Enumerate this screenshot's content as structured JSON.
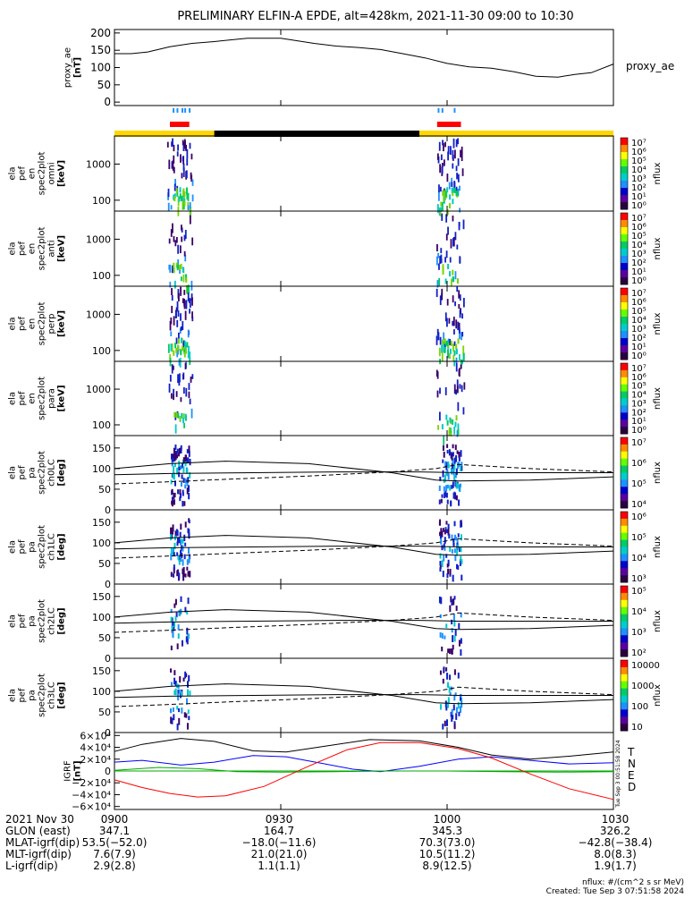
{
  "title": "PRELIMINARY ELFIN-A EPDE, alt=428km, 2021-11-30 09:00 to 10:30",
  "x_ticks": [
    "0900",
    "0930",
    "1000",
    "1030"
  ],
  "colors": {
    "ae_line": "#000000",
    "sci_zone_bar": "#ff0000",
    "sci_zone_tick": "#1e90ff",
    "orbit_day": "#ffd700",
    "orbit_night": "#000000",
    "grf_T": "#000000",
    "grf_N": "#0000ff",
    "grf_E": "#00aa00",
    "grf_D": "#ff0000"
  },
  "panels": {
    "proxy_ae": {
      "ylabel": [
        "proxy_ae",
        "[nT]"
      ],
      "side_label": "proxy_ae",
      "yticks": [
        "200",
        "150",
        "100",
        "50",
        "0"
      ]
    },
    "spec_omni": {
      "ylabel": [
        "ela",
        "pef",
        "en",
        "spec2plot",
        "omni",
        "[keV]"
      ],
      "yticks": [
        "1000",
        "100"
      ],
      "cb_ticks": [
        "10⁷",
        "10⁶",
        "10⁵",
        "10⁴",
        "10³",
        "10²",
        "10¹",
        "10⁰"
      ],
      "cb_label": "nflux"
    },
    "spec_anti": {
      "ylabel": [
        "ela",
        "pef",
        "en",
        "spec2plot",
        "anti",
        "[keV]"
      ],
      "yticks": [
        "1000",
        "100"
      ],
      "cb_ticks": [
        "10⁷",
        "10⁶",
        "10⁵",
        "10⁴",
        "10³",
        "10²",
        "10¹",
        "10⁰"
      ],
      "cb_label": "nflux"
    },
    "spec_perp": {
      "ylabel": [
        "ela",
        "pef",
        "en",
        "spec2plot",
        "perp",
        "[keV]"
      ],
      "yticks": [
        "1000",
        "100"
      ],
      "cb_ticks": [
        "10⁷",
        "10⁶",
        "10⁵",
        "10⁴",
        "10³",
        "10²",
        "10¹",
        "10⁰"
      ],
      "cb_label": "nflux"
    },
    "spec_para": {
      "ylabel": [
        "ela",
        "pef",
        "en",
        "spec2plot",
        "para",
        "[keV]"
      ],
      "yticks": [
        "1000",
        "100"
      ],
      "cb_ticks": [
        "10⁷",
        "10⁶",
        "10⁵",
        "10⁴",
        "10³",
        "10²",
        "10¹",
        "10⁰"
      ],
      "cb_label": "nflux"
    },
    "pa_ch0": {
      "ylabel": [
        "ela",
        "pef",
        "pa",
        "spec2plot",
        "ch0LC",
        "[deg]"
      ],
      "yticks": [
        "150",
        "100",
        "50",
        "0"
      ],
      "cb_ticks": [
        "10⁷",
        "10⁶",
        "10⁵",
        "10⁴"
      ],
      "cb_label": "nflux"
    },
    "pa_ch1": {
      "ylabel": [
        "ela",
        "pef",
        "pa",
        "spec2plot",
        "ch1LC",
        "[deg]"
      ],
      "yticks": [
        "150",
        "100",
        "50",
        "0"
      ],
      "cb_ticks": [
        "10⁶",
        "10⁵",
        "10⁴",
        "10³"
      ],
      "cb_label": "nflux"
    },
    "pa_ch2": {
      "ylabel": [
        "ela",
        "pef",
        "pa",
        "spec2plot",
        "ch2LC",
        "[deg]"
      ],
      "yticks": [
        "150",
        "100",
        "50",
        "0"
      ],
      "cb_ticks": [
        "10⁵",
        "10⁴",
        "10³",
        "10²"
      ],
      "cb_label": "nflux"
    },
    "pa_ch3": {
      "ylabel": [
        "ela",
        "pef",
        "pa",
        "spec2plot",
        "ch3LC",
        "[deg]"
      ],
      "yticks": [
        "150",
        "100",
        "50",
        "0"
      ],
      "cb_ticks": [
        "10000",
        "1000",
        "100",
        "10"
      ],
      "cb_label": "nflux"
    },
    "igrf": {
      "ylabel": [
        "IGRF",
        "[nT]"
      ],
      "yticks": [
        "6×10⁴",
        "4×10⁴",
        "2×10⁴",
        "0",
        "−2×10⁴",
        "−4×10⁴",
        "−6×10⁴"
      ],
      "legend": [
        "T",
        "N",
        "E",
        "D"
      ]
    }
  },
  "chart_data": {
    "type": "line",
    "title": "PRELIMINARY ELFIN-A EPDE, alt=428km, 2021-11-30 09:00 to 10:30",
    "x_range_minutes": [
      0,
      90
    ],
    "proxy_ae": {
      "ylim": [
        -10,
        210
      ],
      "points": [
        [
          0,
          140
        ],
        [
          3,
          140
        ],
        [
          6,
          145
        ],
        [
          10,
          160
        ],
        [
          14,
          170
        ],
        [
          18,
          175
        ],
        [
          24,
          185
        ],
        [
          30,
          185
        ],
        [
          36,
          170
        ],
        [
          40,
          162
        ],
        [
          44,
          158
        ],
        [
          48,
          152
        ],
        [
          52,
          140
        ],
        [
          56,
          128
        ],
        [
          60,
          112
        ],
        [
          64,
          102
        ],
        [
          68,
          98
        ],
        [
          72,
          88
        ],
        [
          76,
          75
        ],
        [
          80,
          72
        ],
        [
          83,
          80
        ],
        [
          86,
          85
        ],
        [
          90,
          110
        ]
      ]
    },
    "orbit_bar": {
      "segments": [
        {
          "start": 0,
          "end": 18,
          "state": "day"
        },
        {
          "start": 18,
          "end": 55,
          "state": "night"
        },
        {
          "start": 55,
          "end": 90,
          "state": "day"
        }
      ]
    },
    "science_zones": [
      {
        "start": 10,
        "end": 13.5
      },
      {
        "start": 58.2,
        "end": 62.5
      }
    ],
    "science_zone_ticks": [
      10.5,
      11.2,
      12.1,
      12.6,
      13.4,
      58.3,
      59.0,
      61.2
    ],
    "spectrum_bursts": [
      {
        "start": 9.5,
        "end": 14
      },
      {
        "start": 58,
        "end": 63
      }
    ],
    "energy_ylim_keV": [
      50,
      6000
    ],
    "pitch_angle": {
      "ylim_deg": [
        0,
        180
      ],
      "solid_line_1": [
        [
          0,
          100
        ],
        [
          10,
          112
        ],
        [
          20,
          118
        ],
        [
          35,
          112
        ],
        [
          50,
          90
        ],
        [
          58,
          72
        ],
        [
          62,
          70
        ],
        [
          75,
          72
        ],
        [
          90,
          80
        ]
      ],
      "solid_line_2": [
        [
          0,
          85
        ],
        [
          10,
          88
        ],
        [
          25,
          90
        ],
        [
          40,
          92
        ],
        [
          55,
          92
        ],
        [
          62,
          90
        ],
        [
          75,
          90
        ],
        [
          90,
          90
        ]
      ],
      "dashed_line": [
        [
          0,
          63
        ],
        [
          10,
          68
        ],
        [
          20,
          74
        ],
        [
          35,
          82
        ],
        [
          50,
          92
        ],
        [
          58,
          100
        ],
        [
          62,
          110
        ],
        [
          75,
          100
        ],
        [
          90,
          92
        ]
      ]
    },
    "igrf": {
      "ylim": [
        -65000,
        65000
      ],
      "series": [
        {
          "name": "T",
          "points": [
            [
              0,
              33000
            ],
            [
              5,
              45000
            ],
            [
              12,
              55000
            ],
            [
              18,
              50000
            ],
            [
              25,
              34000
            ],
            [
              31,
              32000
            ],
            [
              38,
              42000
            ],
            [
              46,
              53000
            ],
            [
              55,
              51000
            ],
            [
              62,
              40000
            ],
            [
              68,
              27000
            ],
            [
              75,
              20000
            ],
            [
              82,
              25000
            ],
            [
              90,
              32000
            ]
          ]
        },
        {
          "name": "N",
          "points": [
            [
              0,
              15000
            ],
            [
              5,
              18000
            ],
            [
              12,
              10000
            ],
            [
              18,
              15000
            ],
            [
              25,
              26000
            ],
            [
              31,
              24000
            ],
            [
              38,
              12000
            ],
            [
              43,
              3000
            ],
            [
              48,
              -1000
            ],
            [
              55,
              8000
            ],
            [
              62,
              20000
            ],
            [
              68,
              24000
            ],
            [
              75,
              18000
            ],
            [
              82,
              12000
            ],
            [
              90,
              14000
            ]
          ]
        },
        {
          "name": "E",
          "points": [
            [
              0,
              1000
            ],
            [
              8,
              6000
            ],
            [
              15,
              4000
            ],
            [
              22,
              -1000
            ],
            [
              30,
              -2000
            ],
            [
              40,
              -1000
            ],
            [
              50,
              0
            ],
            [
              60,
              0
            ],
            [
              70,
              -1000
            ],
            [
              80,
              -2000
            ],
            [
              90,
              -1000
            ]
          ]
        },
        {
          "name": "D",
          "points": [
            [
              0,
              -15000
            ],
            [
              5,
              -28000
            ],
            [
              10,
              -38000
            ],
            [
              15,
              -44000
            ],
            [
              20,
              -42000
            ],
            [
              27,
              -26000
            ],
            [
              35,
              8000
            ],
            [
              42,
              36000
            ],
            [
              48,
              48000
            ],
            [
              55,
              48000
            ],
            [
              62,
              38000
            ],
            [
              68,
              22000
            ],
            [
              75,
              -5000
            ],
            [
              82,
              -30000
            ],
            [
              90,
              -48000
            ]
          ]
        }
      ]
    },
    "ephemeris": {
      "rows": [
        {
          "label": "2021 Nov 30",
          "values": [
            "0900",
            "0930",
            "1000",
            "1030"
          ]
        },
        {
          "label": "GLON (east)",
          "values": [
            "347.1",
            "164.7",
            "345.3",
            "326.2"
          ]
        },
        {
          "label": "MLAT-igrf(dip)",
          "values": [
            "53.5(−52.0)",
            "−18.0(−11.6)",
            "70.3(73.0)",
            "−42.8(−38.4)"
          ]
        },
        {
          "label": "MLT-igrf(dip)",
          "values": [
            "7.6(7.9)",
            "21.0(21.0)",
            "10.5(11.2)",
            "8.0(8.3)"
          ]
        },
        {
          "label": "L-igrf(dip)",
          "values": [
            "2.9(2.8)",
            "1.1(1.1)",
            "8.9(12.5)",
            "1.9(1.7)"
          ]
        }
      ]
    },
    "footer": {
      "units": "nflux: #/(cm^2 s sr MeV)",
      "created": "Created: Tue Sep  3 07:51:58 2024",
      "side_stamp": "Tue Sep  3 00:51:58 2024"
    }
  }
}
